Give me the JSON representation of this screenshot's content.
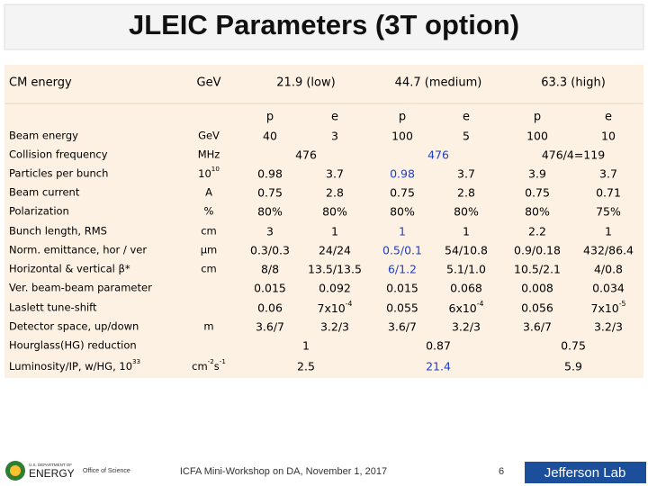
{
  "header": {
    "title": "JLEIC Parameters (3T option)"
  },
  "table": {
    "head": {
      "label": "CM energy",
      "unit": "GeV",
      "groups": [
        "21.9  (low)",
        "44.7 (medium)",
        "63.3 (high)"
      ]
    },
    "subhead": [
      "p",
      "e",
      "p",
      "e",
      "p",
      "e"
    ],
    "rows": [
      {
        "label": "Beam energy",
        "unit": "GeV",
        "cells": [
          "40",
          "3",
          "100",
          "5",
          "100",
          "10"
        ]
      },
      {
        "label": "Collision frequency",
        "unit": "MHz",
        "cells": [
          "476",
          {
            "text": "476",
            "color": "#1f3fc4"
          },
          "476/4=119"
        ]
      },
      {
        "label": "Particles per bunch",
        "unit": {
          "parts": [
            {
              "text": "10"
            },
            {
              "sup": "10"
            }
          ]
        },
        "cells": [
          "0.98",
          "3.7",
          {
            "text": "0.98",
            "color": "#1f3fc4"
          },
          "3.7",
          "3.9",
          "3.7"
        ]
      },
      {
        "label": "Beam current",
        "unit": "A",
        "cells": [
          "0.75",
          "2.8",
          "0.75",
          "2.8",
          "0.75",
          "0.71"
        ]
      },
      {
        "label": "Polarization",
        "unit": "%",
        "cells": [
          "80%",
          "80%",
          "80%",
          "80%",
          "80%",
          "75%"
        ]
      },
      {
        "label": "Bunch length, RMS",
        "unit": "cm",
        "cells": [
          "3",
          "1",
          {
            "text": "1",
            "color": "#1f3fc4"
          },
          "1",
          "2.2",
          "1"
        ]
      },
      {
        "label": "Norm. emittance, hor / ver",
        "unit": "μm",
        "cells": [
          "0.3/0.3",
          "24/24",
          {
            "text": "0.5/0.1",
            "color": "#1f3fc4"
          },
          "54/10.8",
          "0.9/0.18",
          "432/86.4"
        ]
      },
      {
        "label": "Horizontal & vertical β*",
        "unit": "cm",
        "cells": [
          "8/8",
          "13.5/13.5",
          {
            "text": "6/1.2",
            "color": "#1f3fc4"
          },
          "5.1/1.0",
          "10.5/2.1",
          "4/0.8"
        ]
      },
      {
        "label": "Ver. beam-beam parameter",
        "cells": [
          "0.015",
          "0.092",
          "0.015",
          "0.068",
          "0.008",
          "0.034"
        ]
      },
      {
        "label": "Laslett tune-shift",
        "cells": [
          "0.06",
          {
            "parts": [
              {
                "text": "7x10"
              },
              {
                "sup": "-4"
              }
            ]
          },
          "0.055",
          {
            "parts": [
              {
                "text": "6x10"
              },
              {
                "sup": "-4"
              }
            ]
          },
          "0.056",
          {
            "parts": [
              {
                "text": "7x10"
              },
              {
                "sup": "-5"
              }
            ]
          }
        ]
      },
      {
        "label": "Detector space, up/down",
        "unit": "m",
        "cells": [
          "3.6/7",
          "3.2/3",
          "3.6/7",
          "3.2/3",
          "3.6/7",
          "3.2/3"
        ]
      },
      {
        "label": "Hourglass(HG) reduction",
        "cells": [
          "1",
          "0.87",
          "0.75"
        ]
      },
      {
        "label": {
          "parts": [
            {
              "text": "Luminosity/IP, w/HG, 10"
            },
            {
              "sup": "33"
            }
          ]
        },
        "unit": {
          "parts": [
            {
              "text": "cm"
            },
            {
              "sup": "-2"
            },
            {
              "text": "s"
            },
            {
              "sup": "-1"
            }
          ]
        },
        "cells": [
          "2.5",
          {
            "text": "21.4",
            "color": "#1f3fc4"
          },
          "5.9"
        ]
      }
    ]
  },
  "footer": {
    "event": "ICFA Mini-Workshop on DA, November 1, 2017",
    "page": "6",
    "logos": {
      "doe_top": "U.S. DEPARTMENT OF",
      "doe": "ENERGY",
      "office": "Office of Science",
      "jlab": "Jefferson Lab"
    }
  }
}
